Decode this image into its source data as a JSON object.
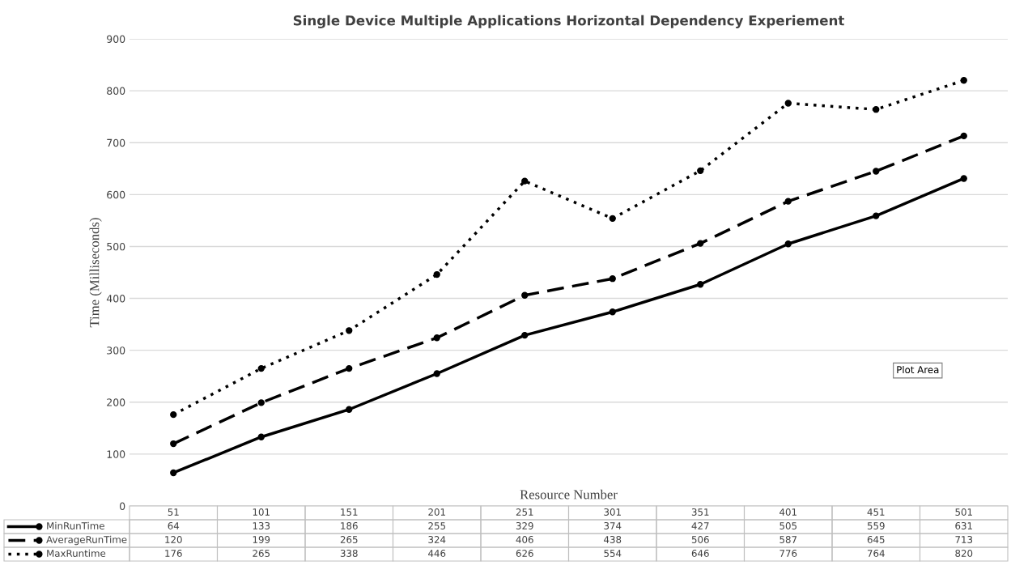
{
  "chart_data": {
    "type": "line",
    "title": "Single Device Multiple Applications Horizontal Dependency Experiement",
    "xlabel": "Resource Number",
    "ylabel": "Time (Milliseconds)",
    "categories": [
      "51",
      "101",
      "151",
      "201",
      "251",
      "301",
      "351",
      "401",
      "451",
      "501"
    ],
    "series": [
      {
        "name": "MinRunTime",
        "color": "#000000",
        "line_style": "solid",
        "values": [
          64,
          133,
          186,
          255,
          329,
          374,
          427,
          505,
          559,
          631
        ]
      },
      {
        "name": "AverageRunTime",
        "color": "#000000",
        "line_style": "dashed",
        "values": [
          120,
          199,
          265,
          324,
          406,
          438,
          506,
          587,
          645,
          713
        ]
      },
      {
        "name": "MaxRuntime",
        "color": "#000000",
        "line_style": "dotted",
        "values": [
          176,
          265,
          338,
          446,
          626,
          554,
          646,
          776,
          764,
          820
        ]
      }
    ],
    "ylim": [
      0,
      900
    ],
    "yticks": [
      0,
      100,
      200,
      300,
      400,
      500,
      600,
      700,
      800,
      900
    ],
    "grid": "y",
    "marker": "circle",
    "data_labels": true,
    "legend": "bottom left",
    "annotations": [
      "Plot Area"
    ]
  }
}
